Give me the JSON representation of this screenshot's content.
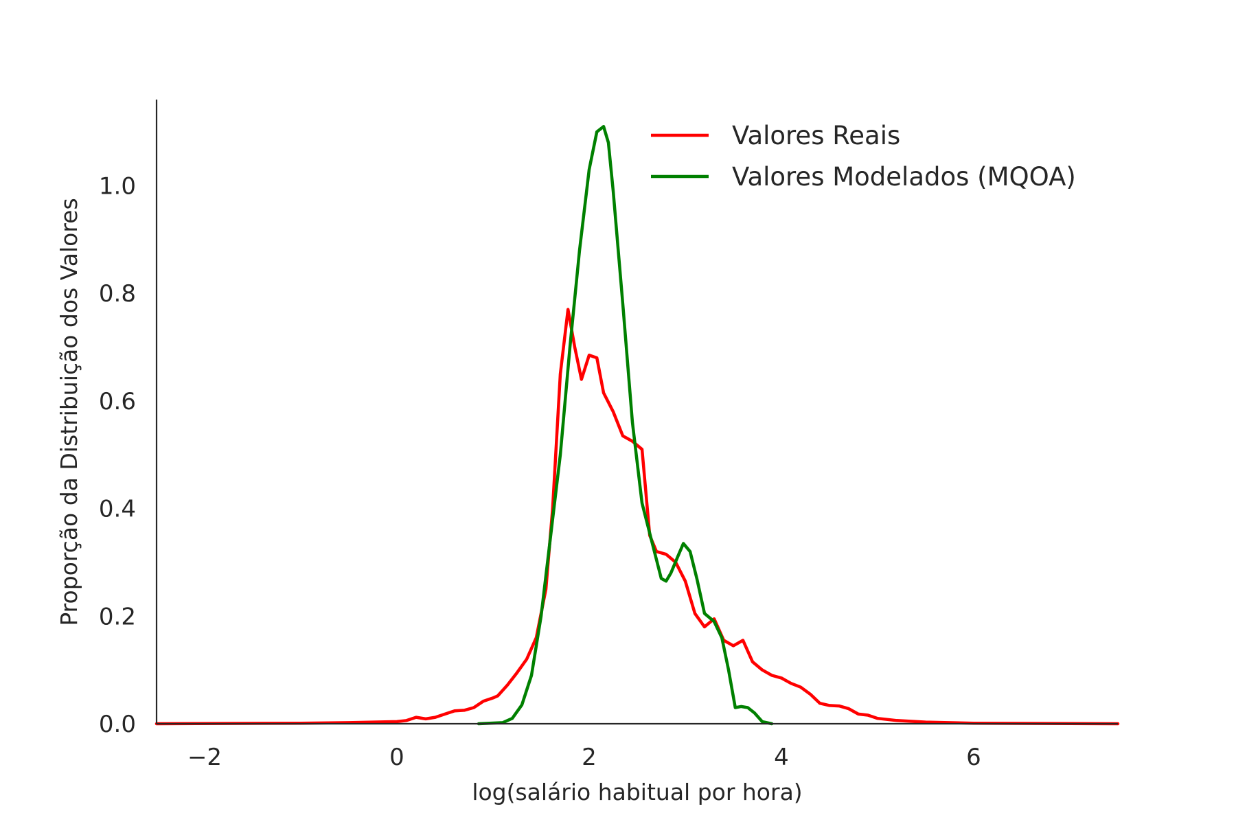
{
  "chart_data": {
    "type": "line",
    "title": "",
    "xlabel": "log(salário habitual por hora)",
    "ylabel": "Proporção da Distribuição dos Valores",
    "xlim": [
      -2.5,
      7.5
    ],
    "ylim": [
      0.0,
      1.16
    ],
    "xticks": [
      -2,
      0,
      2,
      4,
      6
    ],
    "xtick_labels": [
      "−2",
      "0",
      "2",
      "4",
      "6"
    ],
    "yticks": [
      0.0,
      0.2,
      0.4,
      0.6,
      0.8,
      1.0
    ],
    "ytick_labels": [
      "0.0",
      "0.2",
      "0.4",
      "0.6",
      "0.8",
      "1.0"
    ],
    "grid": false,
    "legend_position": "top-right",
    "series": [
      {
        "name": "Valores Reais",
        "color": "#ff0000",
        "x": [
          -2.5,
          -1.0,
          -0.5,
          0.0,
          0.1,
          0.2,
          0.3,
          0.4,
          0.5,
          0.6,
          0.7,
          0.8,
          0.9,
          1.0,
          1.05,
          1.15,
          1.25,
          1.35,
          1.45,
          1.55,
          1.62,
          1.7,
          1.78,
          1.85,
          1.92,
          2.0,
          2.08,
          2.15,
          2.25,
          2.35,
          2.45,
          2.55,
          2.63,
          2.7,
          2.8,
          2.9,
          3.0,
          3.1,
          3.2,
          3.3,
          3.4,
          3.5,
          3.6,
          3.7,
          3.8,
          3.9,
          4.0,
          4.1,
          4.2,
          4.3,
          4.4,
          4.5,
          4.6,
          4.7,
          4.8,
          4.9,
          5.0,
          5.2,
          5.5,
          6.0,
          7.5
        ],
        "y": [
          0.0,
          0.001,
          0.002,
          0.004,
          0.006,
          0.012,
          0.009,
          0.012,
          0.018,
          0.024,
          0.025,
          0.03,
          0.042,
          0.048,
          0.052,
          0.072,
          0.095,
          0.12,
          0.16,
          0.25,
          0.4,
          0.65,
          0.77,
          0.7,
          0.64,
          0.685,
          0.68,
          0.615,
          0.58,
          0.535,
          0.525,
          0.51,
          0.35,
          0.32,
          0.315,
          0.3,
          0.265,
          0.205,
          0.18,
          0.195,
          0.155,
          0.145,
          0.155,
          0.115,
          0.1,
          0.09,
          0.085,
          0.075,
          0.068,
          0.055,
          0.038,
          0.034,
          0.033,
          0.028,
          0.018,
          0.016,
          0.01,
          0.006,
          0.003,
          0.001,
          0.0
        ]
      },
      {
        "name": "Valores Modelados (MQOA)",
        "color": "#008000",
        "x": [
          0.85,
          1.1,
          1.2,
          1.3,
          1.4,
          1.5,
          1.6,
          1.7,
          1.8,
          1.9,
          2.0,
          2.08,
          2.15,
          2.2,
          2.25,
          2.35,
          2.45,
          2.55,
          2.65,
          2.75,
          2.8,
          2.85,
          2.92,
          2.98,
          3.05,
          3.12,
          3.2,
          3.3,
          3.38,
          3.45,
          3.52,
          3.58,
          3.65,
          3.72,
          3.8,
          3.9
        ],
        "y": [
          0.0,
          0.002,
          0.01,
          0.035,
          0.09,
          0.2,
          0.35,
          0.5,
          0.7,
          0.88,
          1.03,
          1.1,
          1.11,
          1.08,
          0.99,
          0.78,
          0.56,
          0.41,
          0.34,
          0.27,
          0.265,
          0.28,
          0.31,
          0.335,
          0.32,
          0.27,
          0.205,
          0.19,
          0.16,
          0.1,
          0.03,
          0.032,
          0.03,
          0.02,
          0.004,
          0.0
        ]
      }
    ]
  }
}
